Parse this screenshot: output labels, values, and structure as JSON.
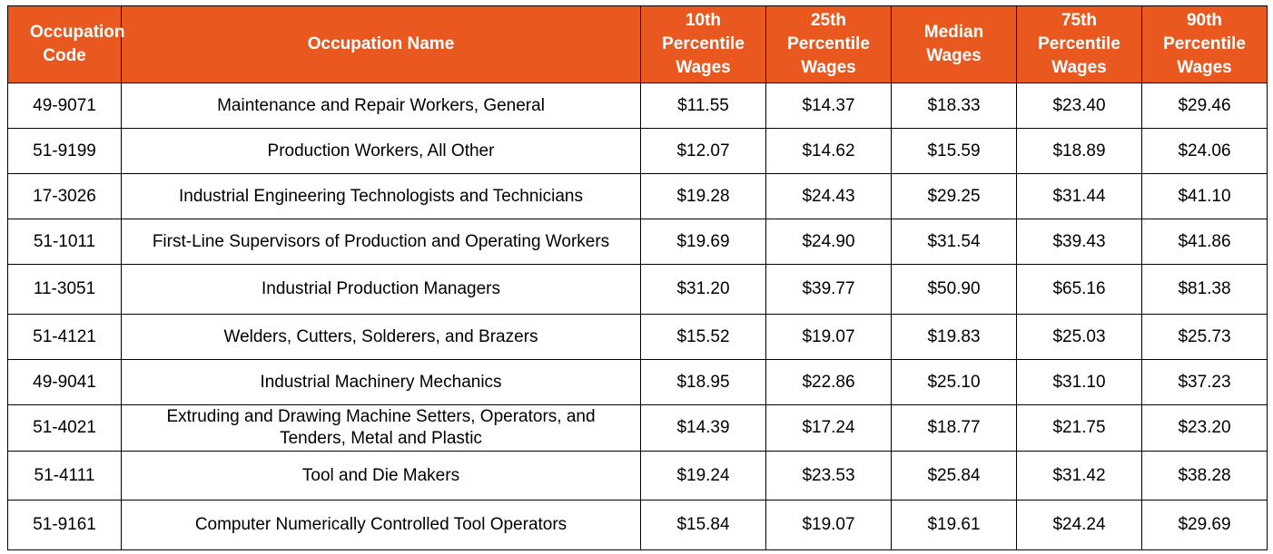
{
  "headers": [
    "Occupation Code",
    "Occupation Name",
    "10th Percentile Wages",
    "25th Percentile Wages",
    "Median Wages",
    "75th Percentile Wages",
    "90th Percentile Wages"
  ],
  "rows": [
    [
      "49-9071",
      "Maintenance and Repair Workers, General",
      "$11.55",
      "$14.37",
      "$18.33",
      "$23.40",
      "$29.46"
    ],
    [
      "51-9199",
      "Production Workers, All Other",
      "$12.07",
      "$14.62",
      "$15.59",
      "$18.89",
      "$24.06"
    ],
    [
      "17-3026",
      "Industrial Engineering Technologists and Technicians",
      "$19.28",
      "$24.43",
      "$29.25",
      "$31.44",
      "$41.10"
    ],
    [
      "51-1011",
      "First-Line Supervisors of Production and Operating Workers",
      "$19.69",
      "$24.90",
      "$31.54",
      "$39.43",
      "$41.86"
    ],
    [
      "11-3051",
      "Industrial Production Managers",
      "$31.20",
      "$39.77",
      "$50.90",
      "$65.16",
      "$81.38"
    ],
    [
      "51-4121",
      "Welders, Cutters, Solderers, and Brazers",
      "$15.52",
      "$19.07",
      "$19.83",
      "$25.03",
      "$25.73"
    ],
    [
      "49-9041",
      "Industrial Machinery Mechanics",
      "$18.95",
      "$22.86",
      "$25.10",
      "$31.10",
      "$37.23"
    ],
    [
      "51-4021",
      "Extruding and Drawing Machine Setters, Operators, and Tenders, Metal and Plastic",
      "$14.39",
      "$17.24",
      "$18.77",
      "$21.75",
      "$23.20"
    ],
    [
      "51-4111",
      "Tool and Die Makers",
      "$19.24",
      "$23.53",
      "$25.84",
      "$31.42",
      "$38.28"
    ],
    [
      "51-9161",
      "Computer Numerically Controlled Tool Operators",
      "$15.84",
      "$19.07",
      "$19.61",
      "$24.24",
      "$29.69"
    ]
  ],
  "colors": {
    "header_bg": "#e9581f",
    "header_text": "#ffffff",
    "border": "#000000"
  }
}
